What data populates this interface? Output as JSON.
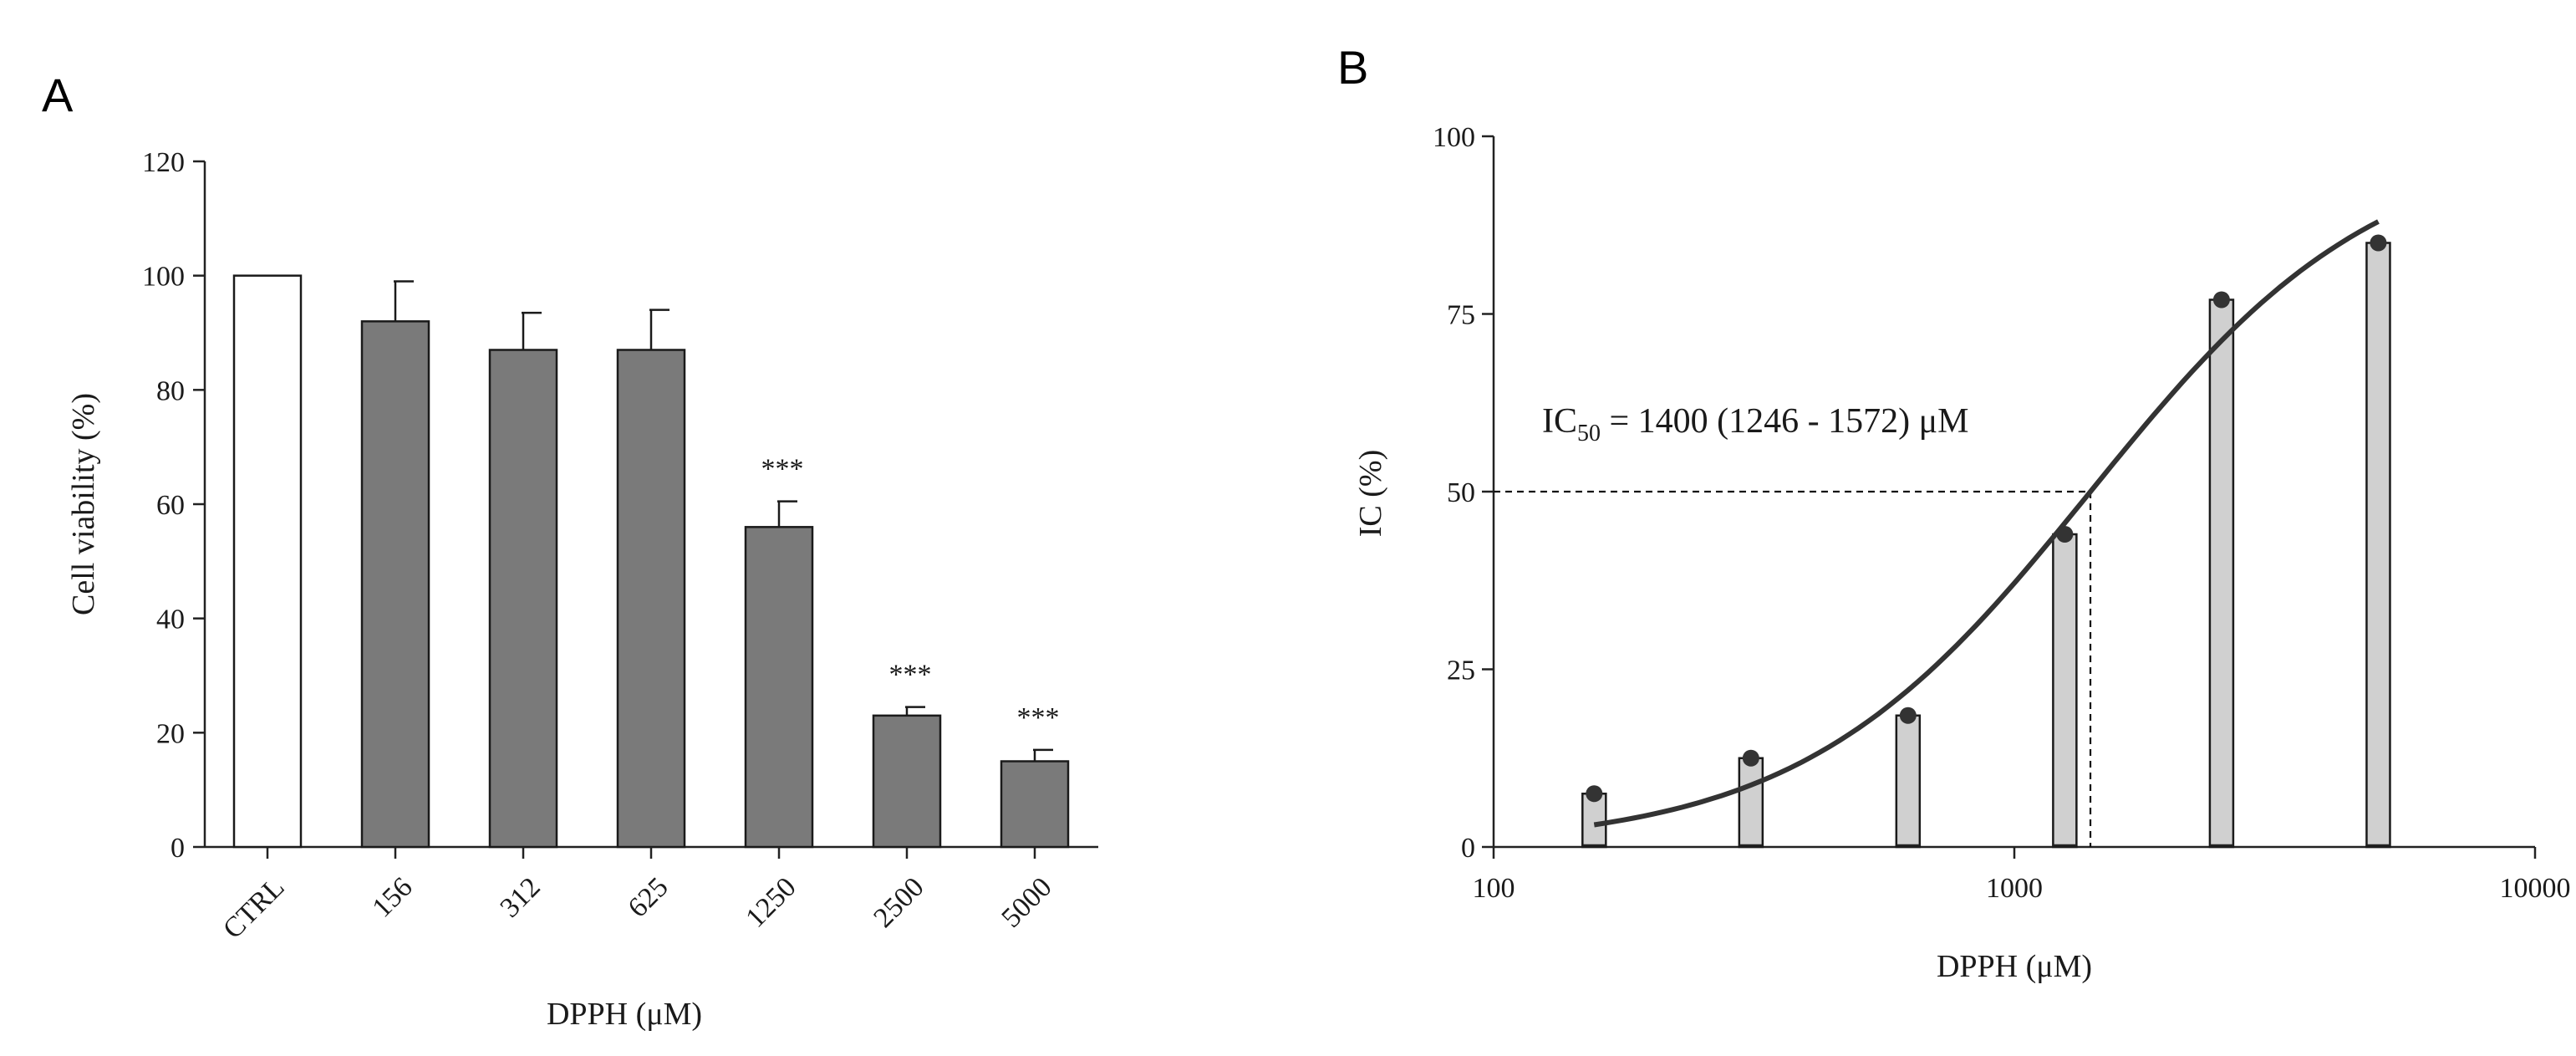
{
  "chart_data": [
    {
      "panel": "A",
      "type": "bar",
      "title": "",
      "xlabel": "DPPH (μM)",
      "ylabel": "Cell viability (%)",
      "ylim": [
        0,
        120
      ],
      "yticks": [
        0,
        20,
        40,
        60,
        80,
        100,
        120
      ],
      "categories": [
        "CTRL",
        "156",
        "312",
        "625",
        "1250",
        "2500",
        "5000"
      ],
      "values": [
        100,
        92,
        87,
        87,
        56,
        23,
        15
      ],
      "errors": [
        0,
        7,
        6.5,
        7,
        4.5,
        1.5,
        2
      ],
      "bar_colors": [
        "#ffffff",
        "#7a7a7a",
        "#7a7a7a",
        "#7a7a7a",
        "#7a7a7a",
        "#7a7a7a",
        "#7a7a7a"
      ],
      "significance": [
        "",
        "",
        "",
        "",
        "***",
        "***",
        "***"
      ],
      "grid": false
    },
    {
      "panel": "B",
      "type": "bar",
      "title": "",
      "xlabel": "DPPH (μM)",
      "ylabel": "IC (%)",
      "xscale": "log",
      "xlim": [
        100,
        10000
      ],
      "xticks": [
        "100",
        "1000",
        "10000"
      ],
      "ylim": [
        0,
        100
      ],
      "yticks": [
        0,
        25,
        50,
        75,
        100
      ],
      "x": [
        156,
        312,
        625,
        1250,
        2500,
        5000
      ],
      "values": [
        7.5,
        12.5,
        18.5,
        44,
        77,
        85
      ],
      "fit": {
        "type": "sigmoid",
        "ic50": 1400,
        "ic50_ci": [
          1246,
          1572
        ],
        "x_range": [
          156,
          5000
        ],
        "y_at_start": 3,
        "y_at_end": 88
      },
      "annotation": {
        "prefix": "IC",
        "subscript": "50",
        "text": " = 1400 (1246 - 1572) μM"
      },
      "grid": false
    }
  ]
}
